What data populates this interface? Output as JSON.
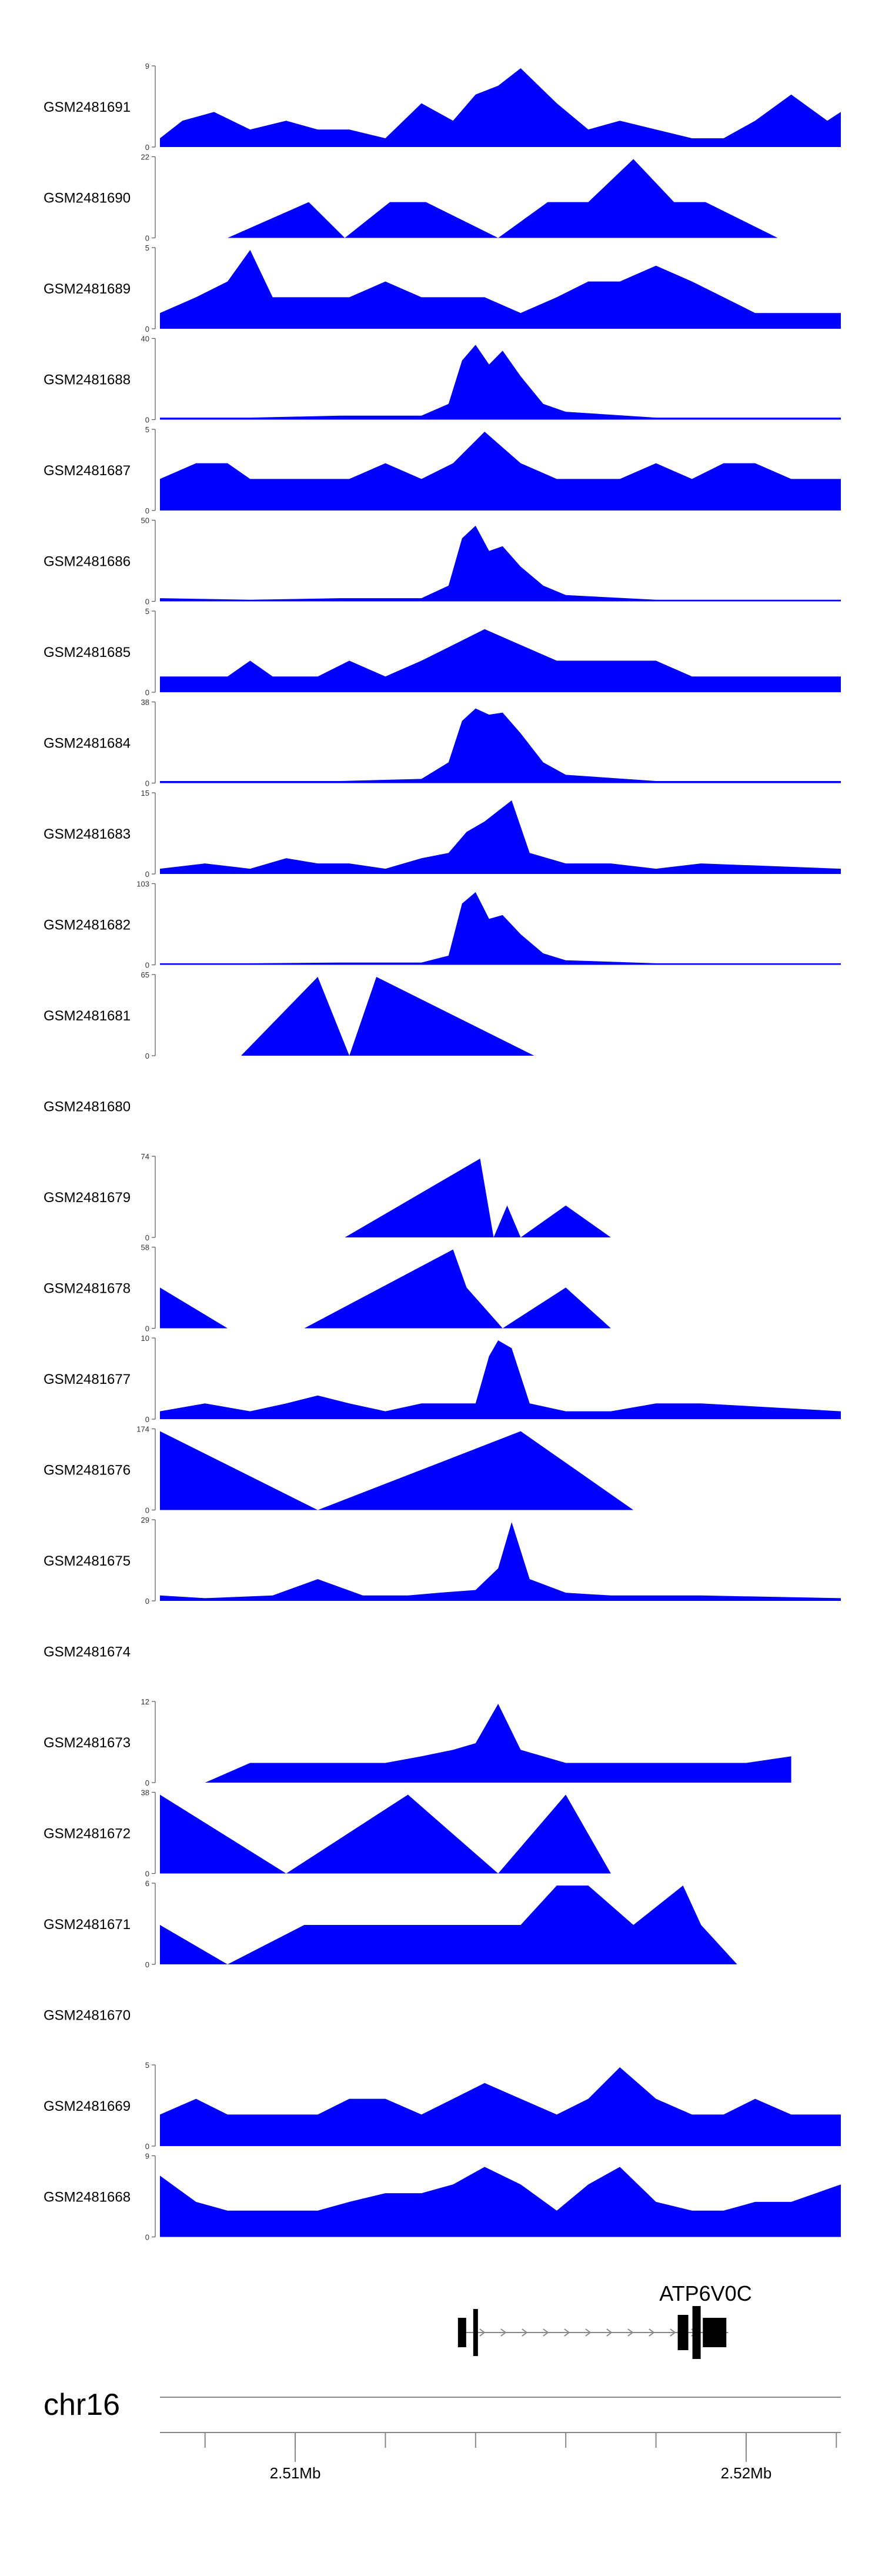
{
  "chart_data": {
    "type": "area",
    "title": "",
    "chromosome": "chr16",
    "gene": {
      "name": "ATP6V0C",
      "strand": "+",
      "start": 2.5137,
      "end": 2.5196,
      "exons": [
        2.5137,
        2.514,
        2.5186,
        2.5189,
        2.5193
      ]
    },
    "x_range": [
      2.507,
      2.5221
    ],
    "x_ticks": [
      {
        "value": 2.51,
        "label": "2.51Mb"
      },
      {
        "value": 2.52,
        "label": "2.52Mb"
      }
    ],
    "x_minor_ticks": [
      2.508,
      2.51,
      2.512,
      2.514,
      2.516,
      2.518,
      2.52,
      2.522
    ],
    "series": [
      {
        "name": "GSM2481691",
        "ymax": 9,
        "x": [
          2.507,
          2.5075,
          2.5082,
          2.509,
          2.5098,
          2.5105,
          2.5112,
          2.512,
          2.5128,
          2.5135,
          2.514,
          2.5145,
          2.515,
          2.5158,
          2.5165,
          2.5172,
          2.518,
          2.5188,
          2.5195,
          2.5202,
          2.521,
          2.5218,
          2.5221
        ],
        "y": [
          1,
          3,
          4,
          2,
          3,
          2,
          2,
          1,
          5,
          3,
          6,
          7,
          9,
          5,
          2,
          3,
          2,
          1,
          1,
          3,
          6,
          3,
          4
        ]
      },
      {
        "name": "GSM2481690",
        "ymax": 22,
        "x": [
          2.5085,
          2.5103,
          2.5111,
          2.5121,
          2.5129,
          2.5145,
          2.5156,
          2.5165,
          2.5175,
          2.5184,
          2.5191,
          2.5207
        ],
        "y": [
          0,
          10,
          0,
          10,
          10,
          0,
          10,
          10,
          22,
          10,
          10,
          0
        ]
      },
      {
        "name": "GSM2481689",
        "ymax": 5,
        "x": [
          2.507,
          2.5078,
          2.5085,
          2.509,
          2.5095,
          2.5105,
          2.5112,
          2.512,
          2.5128,
          2.5135,
          2.5142,
          2.515,
          2.5158,
          2.5165,
          2.5172,
          2.518,
          2.5188,
          2.5195,
          2.5202,
          2.521,
          2.5221
        ],
        "y": [
          1,
          2,
          3,
          5,
          2,
          2,
          2,
          3,
          2,
          2,
          2,
          1,
          2,
          3,
          3,
          4,
          3,
          2,
          1,
          1,
          1
        ]
      },
      {
        "name": "GSM2481688",
        "ymax": 40,
        "x": [
          2.507,
          2.509,
          2.511,
          2.5128,
          2.5134,
          2.5137,
          2.514,
          2.5143,
          2.5146,
          2.515,
          2.5155,
          2.516,
          2.518,
          2.5221
        ],
        "y": [
          1,
          1,
          2,
          2,
          8,
          30,
          38,
          28,
          35,
          22,
          8,
          4,
          1,
          1
        ]
      },
      {
        "name": "GSM2481687",
        "ymax": 5,
        "x": [
          2.507,
          2.5078,
          2.5085,
          2.509,
          2.5095,
          2.5105,
          2.5112,
          2.512,
          2.5128,
          2.5135,
          2.5142,
          2.515,
          2.5158,
          2.5165,
          2.5172,
          2.518,
          2.5188,
          2.5195,
          2.5202,
          2.521,
          2.5221
        ],
        "y": [
          2,
          3,
          3,
          2,
          2,
          2,
          2,
          3,
          2,
          3,
          5,
          3,
          2,
          2,
          2,
          3,
          2,
          3,
          3,
          2,
          2
        ]
      },
      {
        "name": "GSM2481686",
        "ymax": 50,
        "x": [
          2.507,
          2.509,
          2.511,
          2.5128,
          2.5134,
          2.5137,
          2.514,
          2.5143,
          2.5146,
          2.515,
          2.5155,
          2.516,
          2.518,
          2.5221
        ],
        "y": [
          2,
          1,
          2,
          2,
          10,
          40,
          48,
          32,
          35,
          22,
          10,
          4,
          1,
          1
        ]
      },
      {
        "name": "GSM2481685",
        "ymax": 5,
        "x": [
          2.507,
          2.5078,
          2.5085,
          2.509,
          2.5095,
          2.5105,
          2.5112,
          2.512,
          2.5128,
          2.5135,
          2.5142,
          2.515,
          2.5158,
          2.5165,
          2.5172,
          2.518,
          2.5188,
          2.5195,
          2.5202,
          2.521,
          2.5221
        ],
        "y": [
          1,
          1,
          1,
          2,
          1,
          1,
          2,
          1,
          2,
          3,
          4,
          3,
          2,
          2,
          2,
          2,
          1,
          1,
          1,
          1,
          1
        ]
      },
      {
        "name": "GSM2481684",
        "ymax": 38,
        "x": [
          2.507,
          2.509,
          2.511,
          2.5128,
          2.5134,
          2.5137,
          2.514,
          2.5143,
          2.5146,
          2.515,
          2.5155,
          2.516,
          2.518,
          2.5221
        ],
        "y": [
          1,
          1,
          1,
          2,
          10,
          30,
          36,
          33,
          34,
          24,
          10,
          4,
          1,
          1
        ]
      },
      {
        "name": "GSM2481683",
        "ymax": 15,
        "x": [
          2.507,
          2.508,
          2.509,
          2.5098,
          2.5105,
          2.5112,
          2.512,
          2.5128,
          2.5134,
          2.5138,
          2.5142,
          2.5145,
          2.5148,
          2.5152,
          2.516,
          2.517,
          2.518,
          2.519,
          2.5221
        ],
        "y": [
          1,
          2,
          1,
          3,
          2,
          2,
          1,
          3,
          4,
          8,
          10,
          12,
          14,
          4,
          2,
          2,
          1,
          2,
          1
        ]
      },
      {
        "name": "GSM2481682",
        "ymax": 103,
        "x": [
          2.507,
          2.509,
          2.511,
          2.5128,
          2.5134,
          2.5137,
          2.514,
          2.5143,
          2.5146,
          2.515,
          2.5155,
          2.516,
          2.518,
          2.5221
        ],
        "y": [
          2,
          2,
          3,
          3,
          12,
          80,
          95,
          60,
          65,
          40,
          15,
          6,
          2,
          2
        ]
      },
      {
        "name": "GSM2481681",
        "ymax": 65,
        "x": [
          2.5088,
          2.5105,
          2.5112,
          2.5118,
          2.5153
        ],
        "y": [
          0,
          65,
          0,
          65,
          0
        ]
      },
      {
        "name": "GSM2481680",
        "ymax": 0,
        "x": [],
        "y": []
      },
      {
        "name": "GSM2481679",
        "ymax": 74,
        "x": [
          2.5111,
          2.5141,
          2.5144,
          2.5147,
          2.515,
          2.516,
          2.517,
          2.518
        ],
        "y": [
          0,
          74,
          0,
          30,
          0,
          30,
          0,
          0
        ]
      },
      {
        "name": "GSM2481678",
        "ymax": 58,
        "x": [
          2.507,
          2.5085,
          2.5102,
          2.5135,
          2.5138,
          2.5146,
          2.516,
          2.517
        ],
        "y": [
          30,
          0,
          0,
          58,
          30,
          0,
          30,
          0
        ]
      },
      {
        "name": "GSM2481677",
        "ymax": 10,
        "x": [
          2.507,
          2.508,
          2.509,
          2.5098,
          2.5105,
          2.5112,
          2.512,
          2.5128,
          2.5134,
          2.514,
          2.5143,
          2.5145,
          2.5148,
          2.5152,
          2.516,
          2.517,
          2.518,
          2.519,
          2.5221
        ],
        "y": [
          1,
          2,
          1,
          2,
          3,
          2,
          1,
          2,
          2,
          2,
          8,
          10,
          9,
          2,
          1,
          1,
          2,
          2,
          1
        ]
      },
      {
        "name": "GSM2481676",
        "ymax": 174,
        "x": [
          2.507,
          2.5105,
          2.515,
          2.5175
        ],
        "y": [
          174,
          0,
          174,
          0
        ]
      },
      {
        "name": "GSM2481675",
        "ymax": 29,
        "x": [
          2.507,
          2.508,
          2.5095,
          2.5105,
          2.5115,
          2.5125,
          2.5132,
          2.514,
          2.5145,
          2.5148,
          2.5152,
          2.516,
          2.517,
          2.518,
          2.519,
          2.5221
        ],
        "y": [
          2,
          1,
          2,
          8,
          2,
          2,
          3,
          4,
          12,
          29,
          8,
          3,
          2,
          2,
          2,
          1
        ]
      },
      {
        "name": "GSM2481674",
        "ymax": 0,
        "x": [],
        "y": []
      },
      {
        "name": "GSM2481673",
        "ymax": 12,
        "x": [
          2.508,
          2.509,
          2.51,
          2.511,
          2.512,
          2.5128,
          2.5135,
          2.514,
          2.5145,
          2.515,
          2.516,
          2.517,
          2.518,
          2.519,
          2.52,
          2.521
        ],
        "y": [
          0,
          3,
          3,
          3,
          3,
          4,
          5,
          6,
          12,
          5,
          3,
          3,
          3,
          3,
          3,
          4
        ]
      },
      {
        "name": "GSM2481672",
        "ymax": 38,
        "x": [
          2.507,
          2.5098,
          2.5125,
          2.5145,
          2.516,
          2.517,
          2.518
        ],
        "y": [
          38,
          0,
          38,
          0,
          38,
          0,
          0
        ]
      },
      {
        "name": "GSM2481671",
        "ymax": 6,
        "x": [
          2.507,
          2.5085,
          2.5102,
          2.5115,
          2.5128,
          2.5138,
          2.515,
          2.5158,
          2.5165,
          2.5175,
          2.5186,
          2.519,
          2.5198
        ],
        "y": [
          3,
          0,
          3,
          3,
          3,
          3,
          3,
          6,
          6,
          3,
          6,
          3,
          0
        ]
      },
      {
        "name": "GSM2481670",
        "ymax": 0,
        "x": [],
        "y": []
      },
      {
        "name": "GSM2481669",
        "ymax": 5,
        "x": [
          2.507,
          2.5078,
          2.5085,
          2.509,
          2.5095,
          2.5105,
          2.5112,
          2.512,
          2.5128,
          2.5135,
          2.5142,
          2.515,
          2.5158,
          2.5165,
          2.5172,
          2.518,
          2.5188,
          2.5195,
          2.5202,
          2.521,
          2.5221
        ],
        "y": [
          2,
          3,
          2,
          2,
          2,
          2,
          3,
          3,
          2,
          3,
          4,
          3,
          2,
          3,
          5,
          3,
          2,
          2,
          3,
          2,
          2
        ]
      },
      {
        "name": "GSM2481668",
        "ymax": 9,
        "x": [
          2.507,
          2.5078,
          2.5085,
          2.509,
          2.5095,
          2.5105,
          2.5112,
          2.512,
          2.5128,
          2.5135,
          2.5142,
          2.515,
          2.5158,
          2.5165,
          2.5172,
          2.518,
          2.5188,
          2.5195,
          2.5202,
          2.521,
          2.5221
        ],
        "y": [
          7,
          4,
          3,
          3,
          3,
          3,
          4,
          5,
          5,
          6,
          8,
          6,
          3,
          6,
          8,
          4,
          3,
          3,
          4,
          4,
          6
        ]
      }
    ],
    "colors": {
      "fill": "#0000ff",
      "axis": "#555555",
      "text": "#000000",
      "gene": "#000000"
    }
  }
}
